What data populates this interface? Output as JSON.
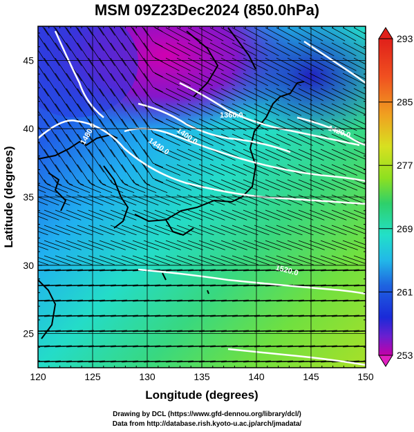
{
  "title": "MSM 09Z23Dec2024 (850.0hPa)",
  "map": {
    "xlabel": "Longitude (degrees)",
    "ylabel": "Latitude  (degrees)",
    "x_ticks": [
      "120",
      "125",
      "130",
      "135",
      "140",
      "145",
      "150"
    ],
    "y_ticks": [
      "25",
      "30",
      "35",
      "40",
      "45"
    ],
    "lon_range": [
      120,
      150
    ],
    "lat_range": [
      22.5,
      47.5
    ],
    "grid_lon": [
      125,
      130,
      135,
      140,
      145
    ],
    "grid_lat": [
      25,
      30,
      35,
      40,
      45
    ],
    "field": "850 hPa temperature (K) with streamlines and geopotential height contours"
  },
  "colorbar": {
    "ticks": [
      "293",
      "285",
      "277",
      "269",
      "261",
      "253"
    ],
    "range": [
      253,
      293
    ],
    "colors": [
      "#c400a8",
      "#6a1fd0",
      "#1a2ad8",
      "#1e63e0",
      "#22b8e8",
      "#22e0c8",
      "#2ed06a",
      "#8ee020",
      "#d8e020",
      "#f0a020",
      "#f05020",
      "#e0201a"
    ]
  },
  "contours": [
    {
      "label": "1360.0"
    },
    {
      "label": "1400.0"
    },
    {
      "label": "1420.0"
    },
    {
      "label": "1440.0"
    },
    {
      "label": "1480.0"
    },
    {
      "label": "1520.0"
    }
  ],
  "credits": {
    "line1": "Drawing by DCL (https://www.gfd-dennou.org/library/dcl/)",
    "line2": "Data from http://database.rish.kyoto-u.ac.jp/arch/jmadata/"
  }
}
